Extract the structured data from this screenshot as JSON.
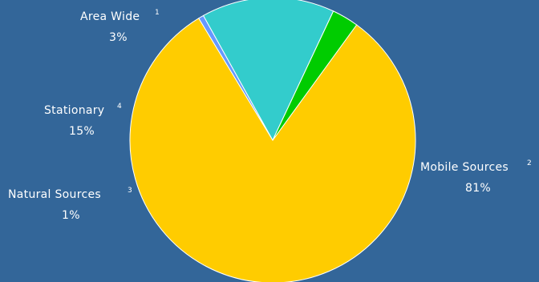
{
  "chart_data": {
    "type": "pie",
    "title": "",
    "slices": [
      {
        "label": "Mobile Sources",
        "footnote": "2",
        "percent_label": "81%",
        "value": 81,
        "color": "#ffcc00"
      },
      {
        "label": "Natural Sources",
        "footnote": "3",
        "percent_label": "1%",
        "value": 0.6,
        "color": "#6699ff"
      },
      {
        "label": "Stationary",
        "footnote": "4",
        "percent_label": "15%",
        "value": 15,
        "color": "#33cccc"
      },
      {
        "label": "Area Wide",
        "footnote": "1",
        "percent_label": "3%",
        "value": 3,
        "color": "#00cc00"
      }
    ],
    "legend": "none",
    "background_color": "#336699",
    "border_color": "#ffffff"
  }
}
